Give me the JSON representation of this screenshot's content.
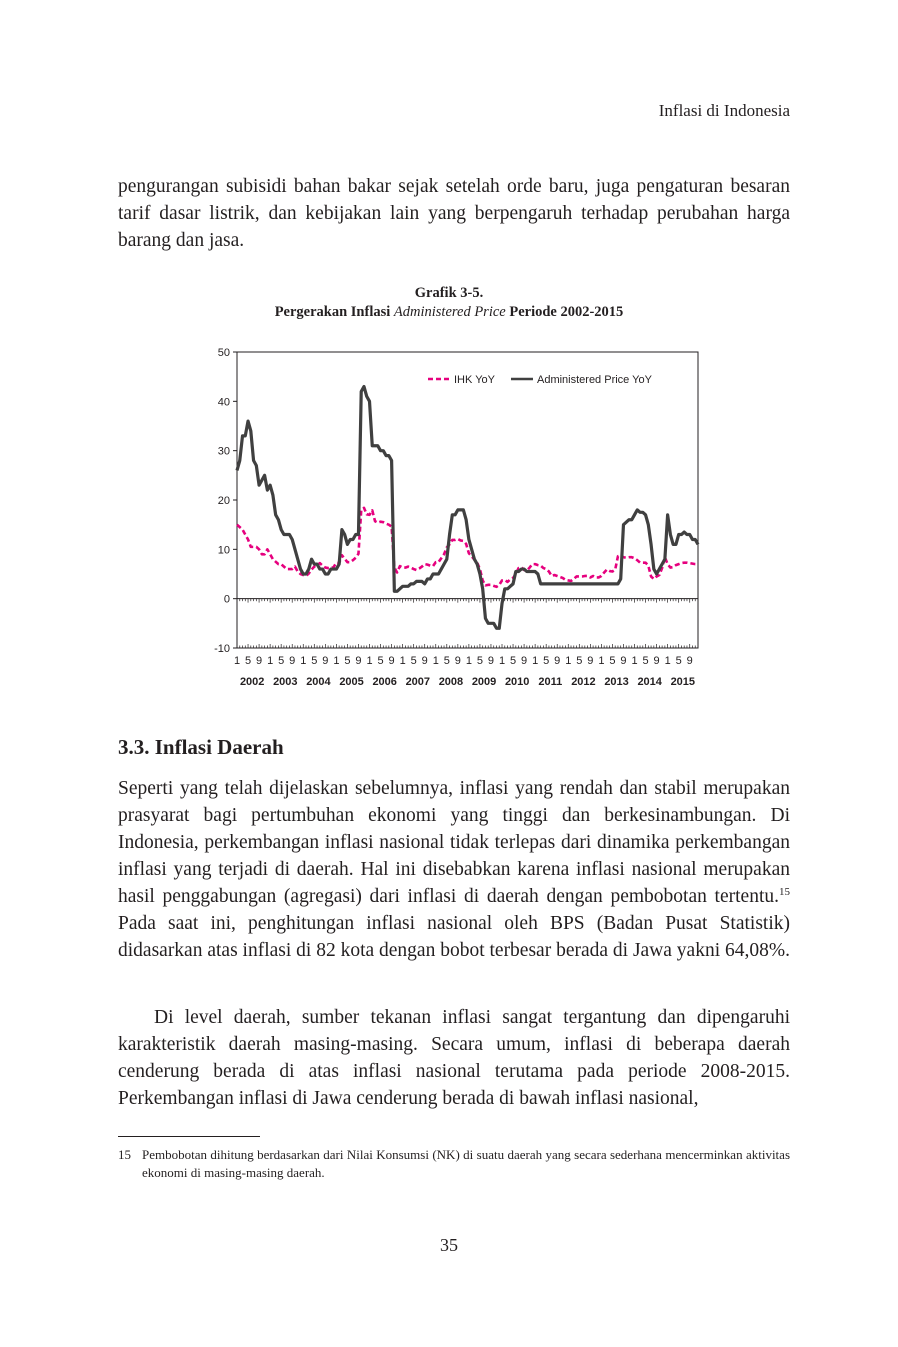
{
  "header": {
    "running_title": "Inflasi di Indonesia"
  },
  "paragraph_1": "pengurangan subisidi bahan bakar sejak setelah orde baru, juga pengaturan besaran tarif dasar listrik, dan kebijakan lain yang berpengaruh terhadap perubahan harga barang dan jasa.",
  "figure": {
    "label": "Grafik 3-5.",
    "title_parts": [
      "Pergerakan Inflasi ",
      "Administered Price",
      " Periode 2002-2015"
    ]
  },
  "chart_data": {
    "type": "line",
    "categories": [
      "1",
      null,
      null,
      null,
      "5",
      null,
      null,
      null,
      "9",
      null,
      null,
      null,
      "1",
      null,
      null,
      null,
      "5",
      null,
      null,
      null,
      "9",
      null,
      null,
      null,
      "1",
      null,
      null,
      null,
      "5",
      null,
      null,
      null,
      "9",
      null,
      null,
      null,
      "1",
      null,
      null,
      null,
      "5",
      null,
      null,
      null,
      "9",
      null,
      null,
      null,
      "1",
      null,
      null,
      null,
      "5",
      null,
      null,
      null,
      "9",
      null,
      null,
      null,
      "1",
      null,
      null,
      null,
      "5",
      null,
      null,
      null,
      "9",
      null,
      null,
      null,
      "1",
      null,
      null,
      null,
      "5",
      null,
      null,
      null,
      "9",
      null,
      null,
      null,
      "1",
      null,
      null,
      null,
      "5",
      null,
      null,
      null,
      "9",
      null,
      null,
      null,
      "1",
      null,
      null,
      null,
      "5",
      null,
      null,
      null,
      "9",
      null,
      null,
      null,
      "1",
      null,
      null,
      null,
      "5",
      null,
      null,
      null,
      "9",
      null,
      null,
      null,
      "1",
      null,
      null,
      null,
      "5",
      null,
      null,
      null,
      "9",
      null,
      null,
      null,
      "1",
      null,
      null,
      null,
      "5",
      null,
      null,
      null,
      "9",
      null,
      null,
      null,
      "1",
      null,
      null,
      null,
      "5",
      null,
      null,
      null,
      "9",
      null,
      null,
      null,
      "1",
      null,
      null,
      null,
      "5",
      null,
      null,
      null,
      "9",
      null,
      null,
      null
    ],
    "x_groups": [
      "2002",
      "2003",
      "2004",
      "2005",
      "2006",
      "2007",
      "2008",
      "2009",
      "2010",
      "2011",
      "2012",
      "2013",
      "2014",
      "2015"
    ],
    "series": [
      {
        "name": "IHK YoY",
        "color": "#e6007e",
        "style": "dashed",
        "values": [
          15,
          14.5,
          14,
          13,
          12,
          10.5,
          10.5,
          10.5,
          10,
          9,
          9,
          10,
          9,
          8,
          7.5,
          7,
          7,
          6.5,
          6,
          6,
          6,
          6.5,
          5.5,
          5,
          4.8,
          4.6,
          5.1,
          5.9,
          6.5,
          6.8,
          7.2,
          6.7,
          6.3,
          6.2,
          6.2,
          6.4,
          7.3,
          7.2,
          8.8,
          8.1,
          7.4,
          7.4,
          7.8,
          8.3,
          9.1,
          17.9,
          18.4,
          17.1,
          17,
          17.9,
          15.7,
          15.4,
          15.6,
          15.5,
          15.2,
          15,
          14.6,
          6.3,
          5.3,
          6.6,
          6.3,
          6.3,
          6.5,
          6.3,
          6,
          5.8,
          6.1,
          6.5,
          7,
          6.9,
          6.7,
          6.6,
          7.4,
          7.4,
          8.2,
          9,
          10.4,
          11,
          11.9,
          11.9,
          12.1,
          11.8,
          11.7,
          11.1,
          9.2,
          8.6,
          7.9,
          7.3,
          6,
          3.7,
          2.7,
          2.8,
          2.8,
          2.6,
          2.4,
          2.8,
          3.7,
          3.8,
          3.4,
          3.9,
          4.2,
          5,
          6.2,
          6.4,
          5.8,
          5.7,
          6.3,
          7,
          7,
          6.8,
          6.7,
          6.2,
          6,
          5.5,
          4.6,
          4.8,
          4.6,
          4.4,
          4.2,
          3.8,
          3.7,
          3.6,
          4,
          4.5,
          4.5,
          4.5,
          4.6,
          4.6,
          4.3,
          4.6,
          4.3,
          4.3,
          4.6,
          5.3,
          5.9,
          5.6,
          5.5,
          5.9,
          8.6,
          8.8,
          8.4,
          8.3,
          8.4,
          8.4,
          8.2,
          7.8,
          7.3,
          7.3,
          7.3,
          6.7,
          4.5,
          4,
          4.5,
          4.8,
          6.2,
          8.4,
          7,
          6.3,
          6.4,
          6.8,
          7,
          7.2,
          7.3,
          7.3,
          7.2,
          7.1,
          7,
          7
        ]
      },
      {
        "name": "Administered Price YoY",
        "color": "#404040",
        "style": "solid",
        "values": [
          26,
          28,
          33,
          33,
          36,
          34,
          28,
          27,
          23,
          24,
          25,
          22,
          23,
          21,
          17,
          16,
          14,
          13,
          13,
          13,
          12,
          10,
          8,
          6,
          5,
          5,
          6,
          8,
          7,
          7,
          6,
          6,
          5,
          5,
          6,
          6,
          6,
          7,
          14,
          13,
          11,
          12,
          12,
          13,
          13,
          42,
          43,
          41,
          40,
          31,
          31,
          31,
          30,
          30,
          29,
          29,
          28,
          1.5,
          1.5,
          2,
          2.5,
          2.5,
          2.5,
          3,
          3,
          3.5,
          3.5,
          3.5,
          3,
          4,
          4,
          5,
          5,
          5,
          6,
          7,
          8,
          13,
          17,
          17,
          18,
          18,
          18,
          16,
          12,
          10,
          8,
          7,
          5,
          2,
          -4,
          -5,
          -5,
          -5,
          -6,
          -6,
          -1,
          2,
          2,
          2.5,
          3,
          5.5,
          5.5,
          6,
          6,
          5.5,
          5.5,
          5.5,
          5.5,
          5,
          3,
          3,
          3,
          3,
          3,
          3,
          3,
          3,
          3,
          3,
          3,
          3,
          3,
          3,
          3,
          3,
          3,
          3,
          3,
          3,
          3,
          3,
          3,
          3,
          3,
          3,
          3,
          3,
          3,
          4,
          15,
          15.5,
          16,
          16,
          17,
          18,
          17.5,
          17.5,
          17,
          15,
          11,
          6,
          5,
          6,
          7,
          8,
          17,
          13,
          11,
          11,
          13,
          13,
          13.5,
          13,
          13,
          12,
          12,
          11
        ]
      }
    ],
    "ylim": [
      -10,
      50
    ],
    "yticks": [
      -10,
      0,
      10,
      20,
      30,
      40,
      50
    ],
    "grid": false,
    "legend_position": "top-right"
  },
  "section": {
    "heading": "3.3. Inflasi Daerah"
  },
  "paragraph_2": [
    "Seperti yang telah dijelaskan sebelumnya, inflasi yang rendah dan stabil merupakan prasyarat bagi pertumbuhan ekonomi yang tinggi dan berkesinambungan. Di Indonesia, perkembangan inflasi nasional tidak terlepas dari dinamika perkembangan inflasi yang terjadi di daerah. Hal ini disebabkan karena inflasi nasional merupakan hasil penggabungan (agregasi) dari inflasi di daerah dengan pembobotan tertentu.",
    "15",
    " Pada saat ini, penghitungan inflasi nasional oleh BPS (Badan Pusat Statistik) didasarkan atas inflasi di 82 kota dengan bobot terbesar berada di Jawa yakni 64,08%."
  ],
  "paragraph_3": "Di level daerah, sumber tekanan inflasi sangat tergantung dan dipengaruhi karakteristik daerah masing-masing. Secara umum, inflasi di beberapa daerah cenderung berada di atas inflasi nasional terutama pada periode 2008-2015. Perkembangan inflasi di Jawa cenderung berada di bawah inflasi nasional,",
  "footnote": {
    "number": "15",
    "text": "Pembobotan dihitung berdasarkan dari Nilai Konsumsi (NK) di suatu daerah yang secara sederhana mencerminkan aktivitas ekonomi di masing-masing daerah."
  },
  "page_number": "35"
}
